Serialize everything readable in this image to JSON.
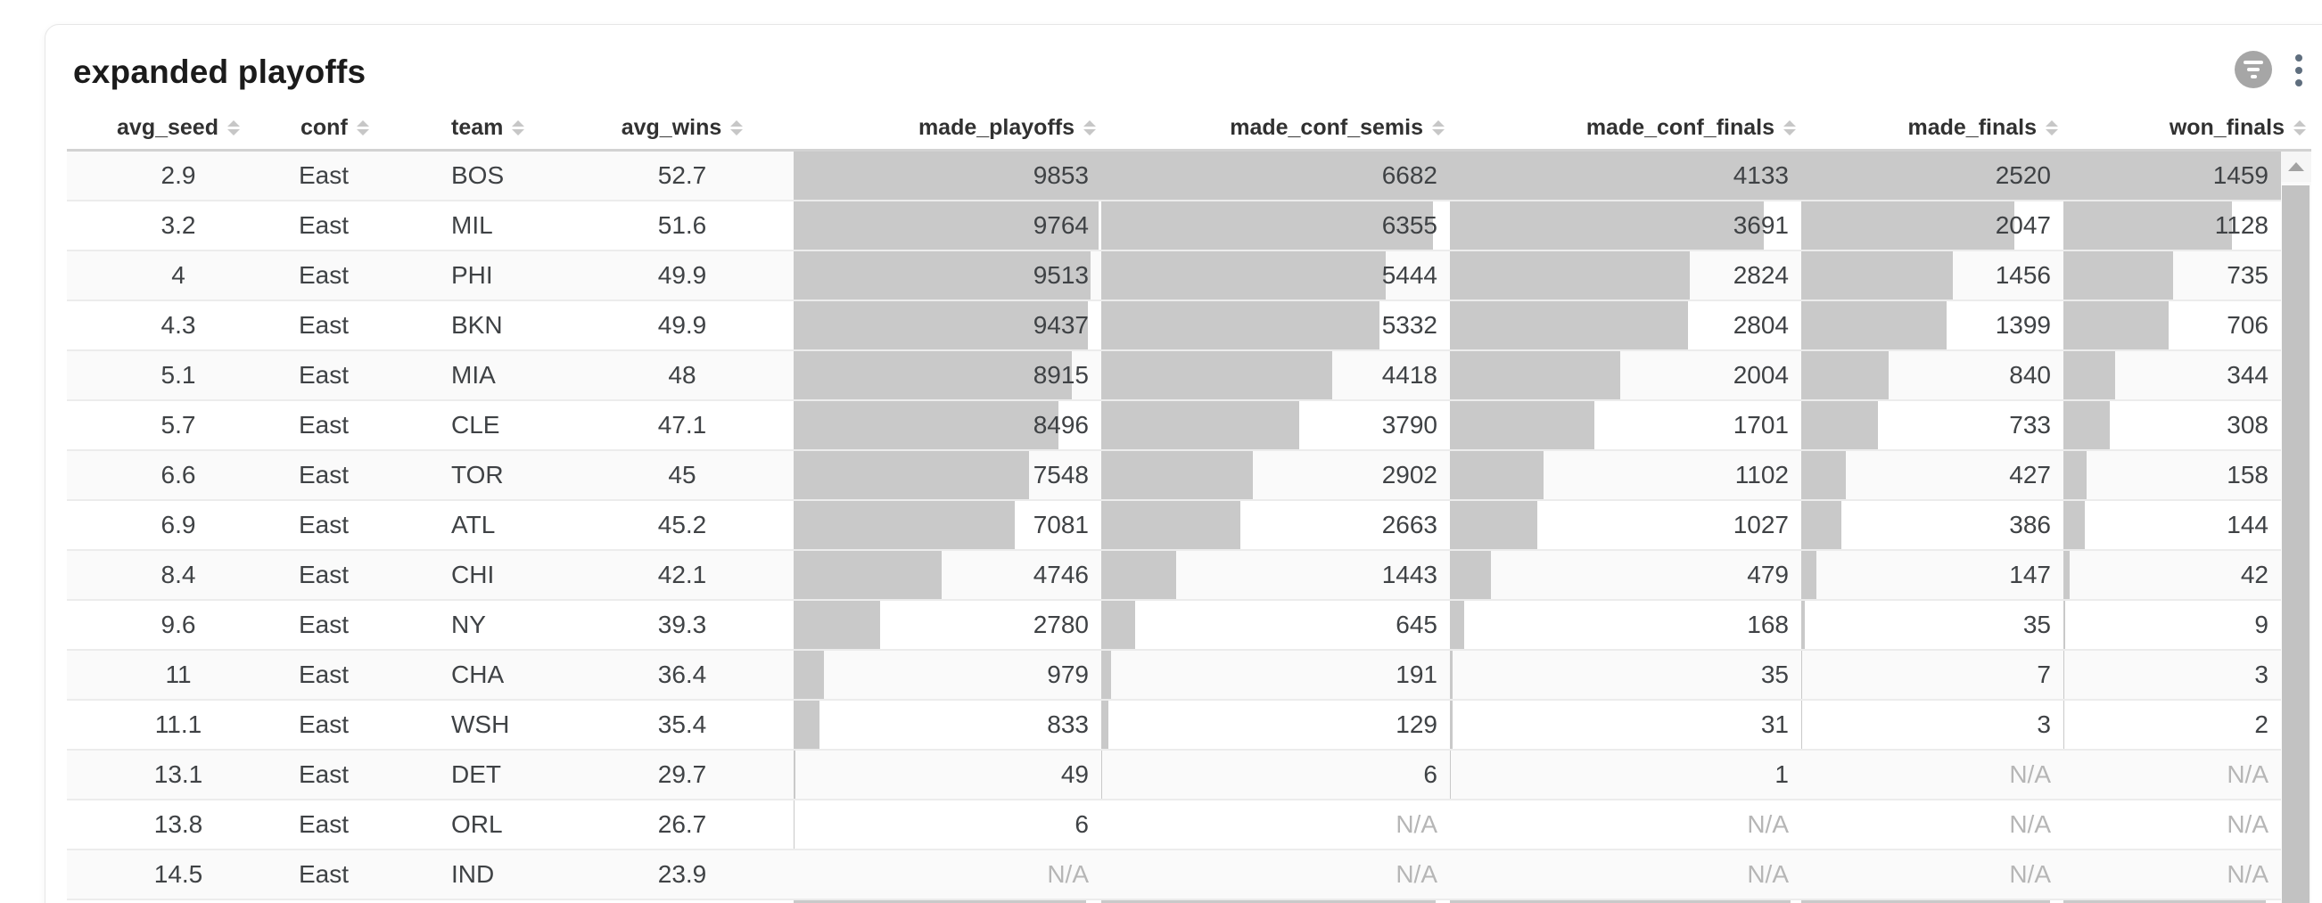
{
  "page": {
    "title": "expanded playoffs"
  },
  "toolbar": {
    "filter_icon": "filter-funnel-icon",
    "menu_icon": "kebab-vertical-icon"
  },
  "colors": {
    "bar_fill": "#c9c9c9",
    "zebra_row": "#fafafa",
    "na_text": "#b6b6b6",
    "cell_text": "#3f4245",
    "header_text": "#313131",
    "filter_button_bg": "#a6a6a6",
    "kebab_dots": "#5f6e7e"
  },
  "table": {
    "na_label": "N/A",
    "columns": [
      {
        "id": "avg_seed",
        "label": "avg_seed",
        "type": "number",
        "align": "center"
      },
      {
        "id": "conf",
        "label": "conf",
        "type": "text",
        "align": "left"
      },
      {
        "id": "team",
        "label": "team",
        "type": "text",
        "align": "left"
      },
      {
        "id": "avg_wins",
        "label": "avg_wins",
        "type": "number",
        "align": "center"
      },
      {
        "id": "made_playoffs",
        "label": "made_playoffs",
        "type": "bar",
        "align": "right",
        "max": 9853
      },
      {
        "id": "made_conf_semis",
        "label": "made_conf_semis",
        "type": "bar",
        "align": "right",
        "max": 6682
      },
      {
        "id": "made_conf_finals",
        "label": "made_conf_finals",
        "type": "bar",
        "align": "right",
        "max": 4133
      },
      {
        "id": "made_finals",
        "label": "made_finals",
        "type": "bar",
        "align": "right",
        "max": 2520
      },
      {
        "id": "won_finals",
        "label": "won_finals",
        "type": "bar",
        "align": "right",
        "max": 1459
      }
    ],
    "rows": [
      [
        "2.9",
        "East",
        "BOS",
        "52.7",
        "9853",
        "6682",
        "4133",
        "2520",
        "1459"
      ],
      [
        "3.2",
        "East",
        "MIL",
        "51.6",
        "9764",
        "6355",
        "3691",
        "2047",
        "1128"
      ],
      [
        "4",
        "East",
        "PHI",
        "49.9",
        "9513",
        "5444",
        "2824",
        "1456",
        "735"
      ],
      [
        "4.3",
        "East",
        "BKN",
        "49.9",
        "9437",
        "5332",
        "2804",
        "1399",
        "706"
      ],
      [
        "5.1",
        "East",
        "MIA",
        "48",
        "8915",
        "4418",
        "2004",
        "840",
        "344"
      ],
      [
        "5.7",
        "East",
        "CLE",
        "47.1",
        "8496",
        "3790",
        "1701",
        "733",
        "308"
      ],
      [
        "6.6",
        "East",
        "TOR",
        "45",
        "7548",
        "2902",
        "1102",
        "427",
        "158"
      ],
      [
        "6.9",
        "East",
        "ATL",
        "45.2",
        "7081",
        "2663",
        "1027",
        "386",
        "144"
      ],
      [
        "8.4",
        "East",
        "CHI",
        "42.1",
        "4746",
        "1443",
        "479",
        "147",
        "42"
      ],
      [
        "9.6",
        "East",
        "NY",
        "39.3",
        "2780",
        "645",
        "168",
        "35",
        "9"
      ],
      [
        "11",
        "East",
        "CHA",
        "36.4",
        "979",
        "191",
        "35",
        "7",
        "3"
      ],
      [
        "11.1",
        "East",
        "WSH",
        "35.4",
        "833",
        "129",
        "31",
        "3",
        "2"
      ],
      [
        "13.1",
        "East",
        "DET",
        "29.7",
        "49",
        "6",
        "1",
        "N/A",
        "N/A"
      ],
      [
        "13.8",
        "East",
        "ORL",
        "26.7",
        "6",
        "N/A",
        "N/A",
        "N/A",
        "N/A"
      ],
      [
        "14.5",
        "East",
        "IND",
        "23.9",
        "N/A",
        "N/A",
        "N/A",
        "N/A",
        "N/A"
      ]
    ],
    "next_row_partial_bar_fractions": {
      "made_playoffs": 0.95,
      "made_conf_semis": 0.96,
      "made_conf_finals": 0.97,
      "made_finals": 0.95,
      "won_finals": 0.93
    }
  },
  "scrollbar": {
    "up_arrow_icon": "up-arrow-icon"
  }
}
